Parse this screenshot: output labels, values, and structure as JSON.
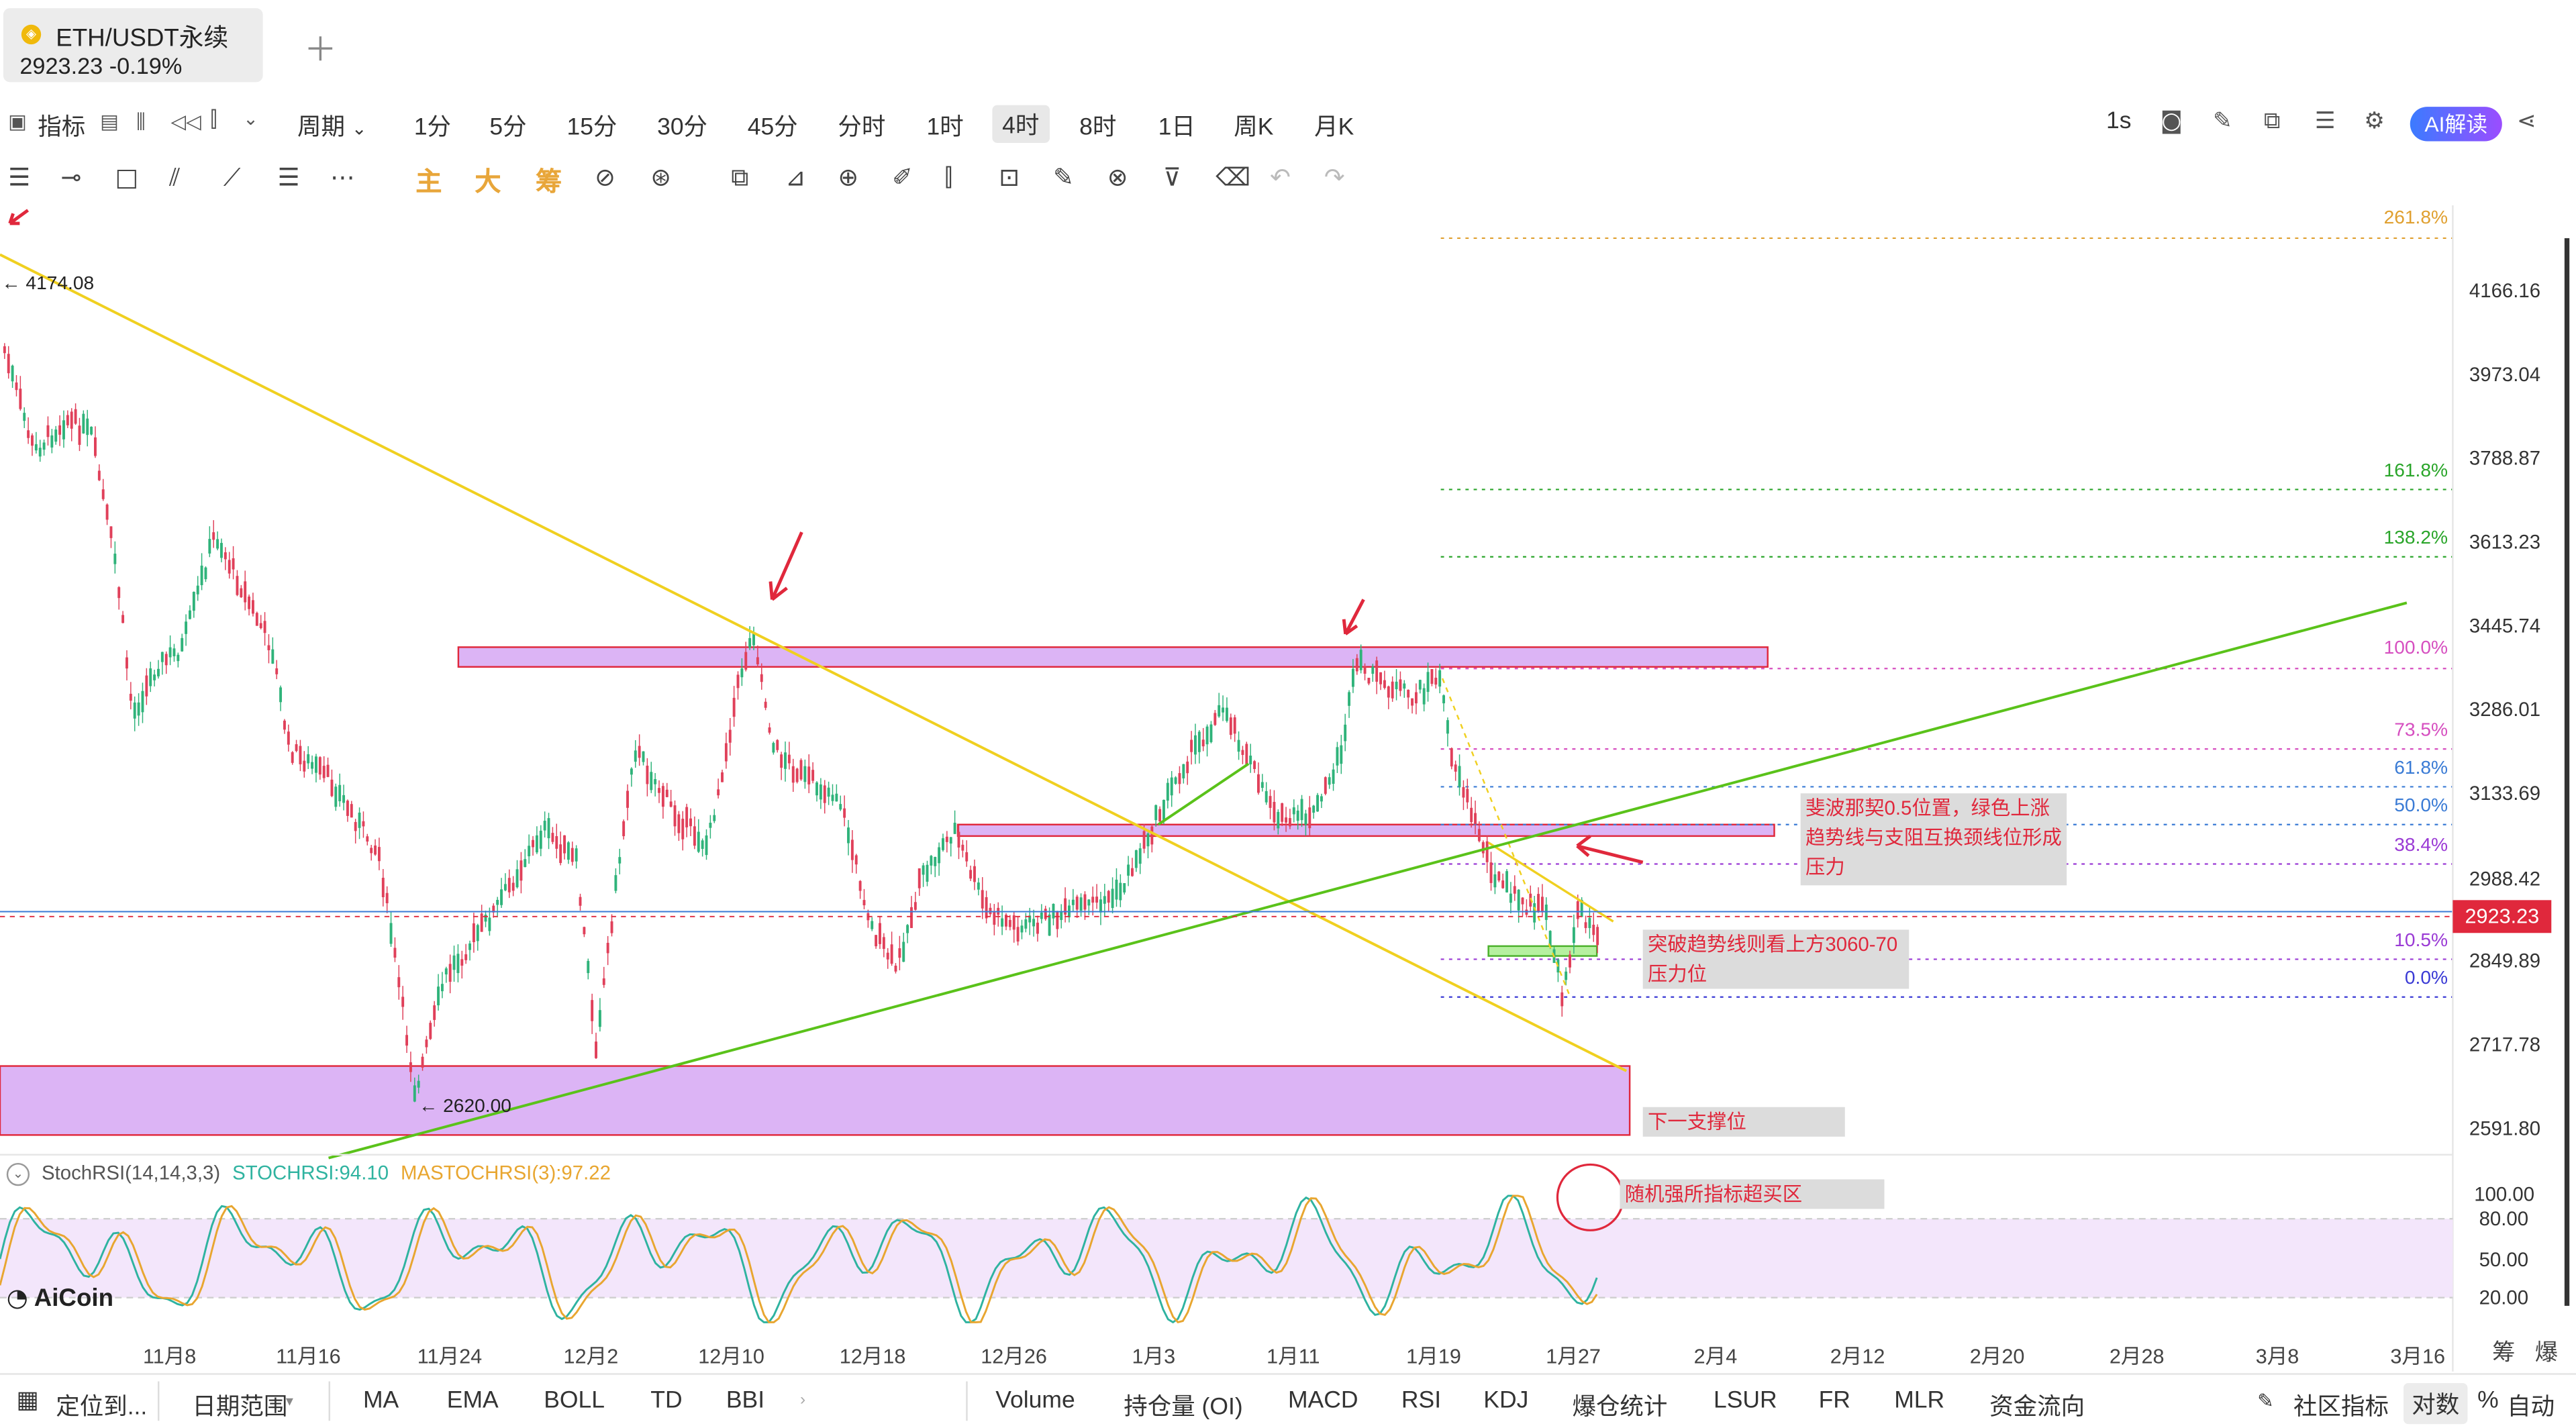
{
  "tab": {
    "symbol": "ETH/USDT永续",
    "price_line": "2923.23  -0.19%",
    "add_icon": "plus-icon",
    "coin_glyph": "◈"
  },
  "toolbar1": {
    "indicators_label": "指标",
    "period_label": "周期",
    "intervals": [
      "1分",
      "5分",
      "15分",
      "30分",
      "45分",
      "分时",
      "1时",
      "4时",
      "8时",
      "1日",
      "周K",
      "月K"
    ],
    "active_interval": "4时",
    "speed_label": "1s",
    "ai_label": "AI解读"
  },
  "toolbar2": {
    "main_label": "主",
    "large_label": "大",
    "chips_label": "筹"
  },
  "chart": {
    "current_price": "2923.23",
    "high_label": "← 4174.08",
    "low_label": "← 2620.00",
    "y_ticks": [
      "4166.16",
      "3973.04",
      "3788.87",
      "3613.23",
      "3445.74",
      "3286.01",
      "3133.69",
      "2988.42",
      "2849.89",
      "2717.78",
      "2591.80",
      "100.00",
      "80.00",
      "50.00",
      "20.00"
    ],
    "x_ticks": [
      "11月8",
      "11月16",
      "11月24",
      "12月2",
      "12月10",
      "12月18",
      "12月26",
      "1月3",
      "1月11",
      "1月19",
      "1月27",
      "2月4",
      "2月12",
      "2月20",
      "2月28",
      "3月8",
      "3月16"
    ],
    "fib_levels": [
      {
        "label": "261.8%",
        "color": "#e0a030"
      },
      {
        "label": "161.8%",
        "color": "#2aa52a"
      },
      {
        "label": "138.2%",
        "color": "#2aa52a"
      },
      {
        "label": "100.0%",
        "color": "#d64fc0"
      },
      {
        "label": "73.5%",
        "color": "#d64fc0"
      },
      {
        "label": "61.8%",
        "color": "#3a7bd5"
      },
      {
        "label": "50.0%",
        "color": "#3a7bd5"
      },
      {
        "label": "38.4%",
        "color": "#9a3ad5"
      },
      {
        "label": "10.5%",
        "color": "#9a3ad5"
      },
      {
        "label": "0.0%",
        "color": "#3a3ad5"
      }
    ],
    "annotations": {
      "fib_note": [
        "斐波那契0.5位置，绿色上涨",
        "趋势线与支阻互换颈线位形成",
        "压力"
      ],
      "breakout_note": [
        "突破趋势线则看上方3060-70",
        "压力位"
      ],
      "support_note": "下一支撑位",
      "stoch_note": "随机强所指标超买区"
    },
    "stoch": {
      "name": "StochRSI(14,14,3,3)",
      "k": "STOCHRSI:94.10",
      "d": "MASTOCHRSI(3):97.22"
    },
    "brand": "AiCoin",
    "colors": {
      "up": "#2fb37a",
      "down": "#e0405a",
      "yellow_trend": "#f0d020",
      "green_trend": "#5ac21a",
      "zone_fill": "#dcb4f5",
      "zone_border": "#e0283c",
      "price": "#e0283c"
    }
  },
  "right_bottom": {
    "chips": "筹",
    "burst": "爆"
  },
  "bottombar": {
    "locate_label": "定位到...",
    "date_range_label": "日期范围",
    "left_indicators": [
      "MA",
      "EMA",
      "BOLL",
      "TD",
      "BBI"
    ],
    "right_indicators": [
      "Volume",
      "持仓量 (OI)",
      "MACD",
      "RSI",
      "KDJ",
      "爆仓统计",
      "LSUR",
      "FR",
      "MLR",
      "资金流向"
    ],
    "community_label": "社区指标",
    "log_label": "对数",
    "percent_label": "%",
    "auto_label": "自动"
  }
}
